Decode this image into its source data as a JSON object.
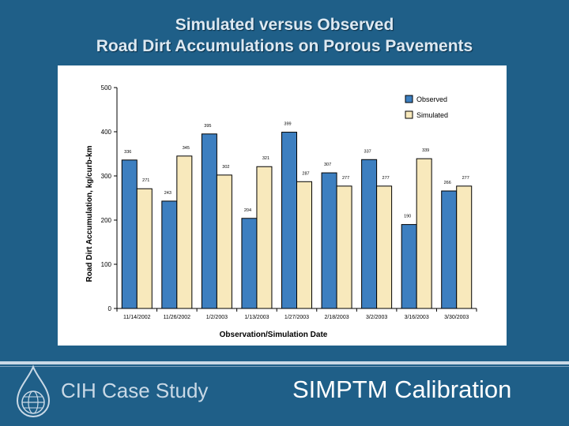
{
  "slide": {
    "title_line1": "Simulated versus Observed",
    "title_line2": "Road Dirt Accumulations on Porous Pavements",
    "footer_left": "CIH Case Study",
    "footer_right": "SIMPTM Calibration"
  },
  "chart_data": {
    "type": "bar",
    "title": "",
    "xlabel": "Observation/Simulation Date",
    "ylabel": "Road Dirt Accumulation, kg/curb-km",
    "ylim": [
      0,
      500
    ],
    "yticks": [
      0,
      100,
      200,
      300,
      400,
      500
    ],
    "categories": [
      "11/14/2002",
      "11/26/2002",
      "1/2/2003",
      "1/13/2003",
      "1/27/2003",
      "2/18/2003",
      "3/2/2003",
      "3/16/2003",
      "3/30/2003"
    ],
    "legend_position": "top-right",
    "series": [
      {
        "name": "Observed",
        "color": "#3d7fc0",
        "values": [
          336,
          243,
          395,
          204,
          399,
          307,
          337,
          190,
          266
        ],
        "labels": [
          "336",
          "243",
          "395",
          "204",
          "399",
          "307",
          "337",
          "190",
          "266"
        ]
      },
      {
        "name": "Simulated",
        "color": "#f8e9bc",
        "values": [
          271,
          345,
          302,
          321,
          287,
          277,
          277,
          339,
          277
        ],
        "labels": [
          "271",
          "345",
          "302",
          "321",
          "287",
          "277",
          "277",
          "339",
          "277"
        ]
      }
    ]
  },
  "colors": {
    "background": "#1f5f88",
    "observed": "#3d7fc0",
    "simulated": "#f8e9bc"
  }
}
